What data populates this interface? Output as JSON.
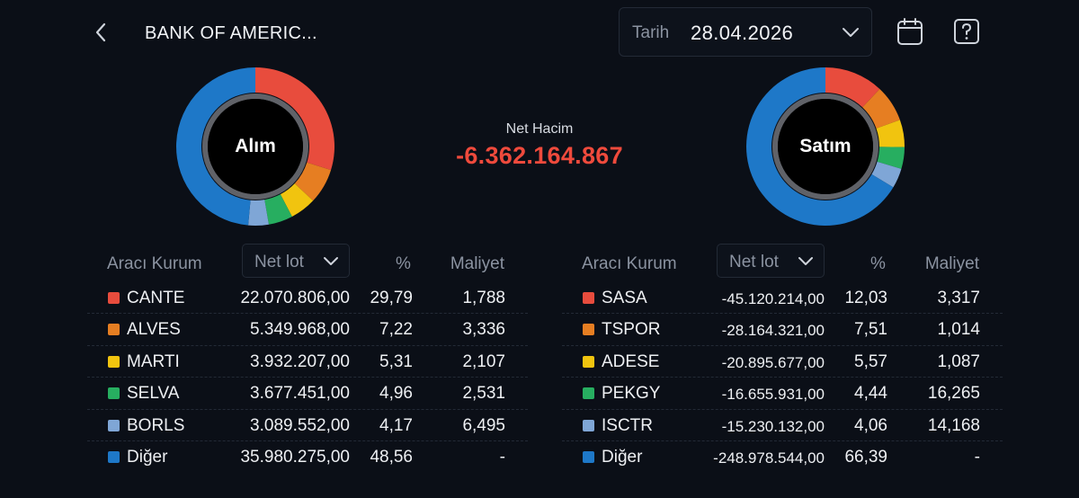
{
  "header": {
    "title": "BANK OF AMERIC...",
    "date_label": "Tarih",
    "date_value": "28.04.2026"
  },
  "net_volume": {
    "label": "Net Hacim",
    "value": "-6.362.164.867",
    "color": "#ef4a3c"
  },
  "alim": {
    "chart_label": "Alım",
    "header": {
      "kurum": "Aracı Kurum",
      "sort": "Net lot",
      "pct": "%",
      "cost": "Maliyet"
    },
    "rows": [
      {
        "name": "CANTE",
        "lot": "22.070.806,00",
        "pct": "29,79",
        "cost": "1,788",
        "color": "#e84c3d",
        "share": 29.79
      },
      {
        "name": "ALVES",
        "lot": "5.349.968,00",
        "pct": "7,22",
        "cost": "3,336",
        "color": "#e67e22",
        "share": 7.22
      },
      {
        "name": "MARTI",
        "lot": "3.932.207,00",
        "pct": "5,31",
        "cost": "2,107",
        "color": "#f1c40f",
        "share": 5.31
      },
      {
        "name": "SELVA",
        "lot": "3.677.451,00",
        "pct": "4,96",
        "cost": "2,531",
        "color": "#27ae60",
        "share": 4.96
      },
      {
        "name": "BORLS",
        "lot": "3.089.552,00",
        "pct": "4,17",
        "cost": "6,495",
        "color": "#7fa6d6",
        "share": 4.17
      },
      {
        "name": "Diğer",
        "lot": "35.980.275,00",
        "pct": "48,56",
        "cost": "-",
        "color": "#1e78c8",
        "share": 48.56
      }
    ]
  },
  "satim": {
    "chart_label": "Satım",
    "header": {
      "kurum": "Aracı Kurum",
      "sort": "Net lot",
      "pct": "%",
      "cost": "Maliyet"
    },
    "rows": [
      {
        "name": "SASA",
        "lot": "-45.120.214,00",
        "pct": "12,03",
        "cost": "3,317",
        "color": "#e84c3d",
        "share": 12.03
      },
      {
        "name": "TSPOR",
        "lot": "-28.164.321,00",
        "pct": "7,51",
        "cost": "1,014",
        "color": "#e67e22",
        "share": 7.51
      },
      {
        "name": "ADESE",
        "lot": "-20.895.677,00",
        "pct": "5,57",
        "cost": "1,087",
        "color": "#f1c40f",
        "share": 5.57
      },
      {
        "name": "PEKGY",
        "lot": "-16.655.931,00",
        "pct": "4,44",
        "cost": "16,265",
        "color": "#27ae60",
        "share": 4.44
      },
      {
        "name": "ISCTR",
        "lot": "-15.230.132,00",
        "pct": "4,06",
        "cost": "14,168",
        "color": "#7fa6d6",
        "share": 4.06
      },
      {
        "name": "Diğer",
        "lot": "-248.978.544,00",
        "pct": "66,39",
        "cost": "-",
        "color": "#1e78c8",
        "share": 66.39
      }
    ]
  }
}
